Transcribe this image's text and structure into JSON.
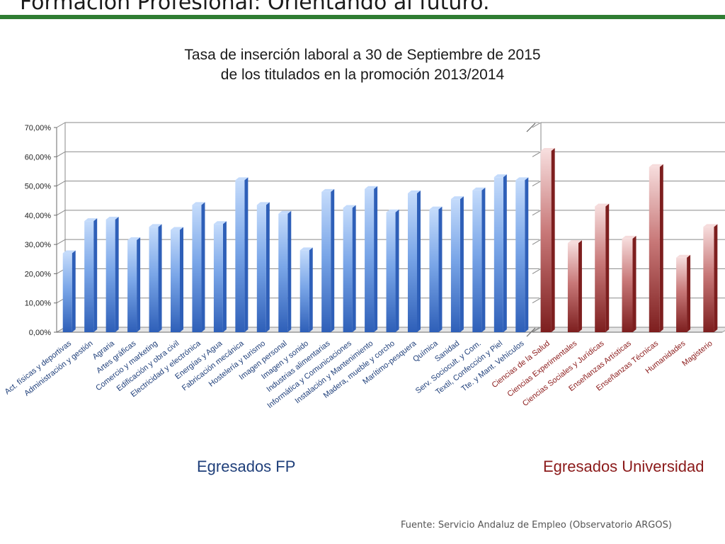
{
  "slide": {
    "title": "Formación Profesional: Orientando al futuro.",
    "accent_color": "#2f7d32"
  },
  "footer": {
    "source": "Fuente: Servicio Andaluz de Empleo (Observatorio ARGOS)"
  },
  "chart_data": {
    "type": "bar",
    "title_lines": [
      "Tasa de inserción laboral a 30 de Septiembre de 2015",
      "de los titulados en la promoción 2013/2014"
    ],
    "y_ticks": [
      "0,00%",
      "10,00%",
      "20,00%",
      "30,00%",
      "40,00%",
      "50,00%",
      "60,00%",
      "70,00%"
    ],
    "ylim": [
      0,
      70
    ],
    "y_unit": "%",
    "grid": true,
    "groups": [
      {
        "name": "Egresados FP",
        "color": "#5b8fd9",
        "label_color": "#1f3f7a",
        "categories": [
          "Act. físicas y deportivas",
          "Administración y gestión",
          "Agraria",
          "Artes gráficas",
          "Comercio y marketing",
          "Edificación y obra civil",
          "Electricidad y electrónica",
          "Energías y Agua",
          "Fabricación mecánica",
          "Hostelería y turismo",
          "Imagen personal",
          "Imagen y sonido",
          "Industrias alimentarias",
          "Informática y Comunicaciones",
          "Instalación y Mantenimiento",
          "Madera, mueble y corcho",
          "Marítimo-pesquera",
          "Química",
          "Sanidad",
          "Serv. Sociocult. y Com.",
          "Textil, Confección y Piel",
          "Tte. y Mant. Vehículos"
        ],
        "values": [
          27,
          38,
          38.5,
          31.5,
          36,
          35,
          43.5,
          37,
          52,
          43.5,
          40.5,
          28,
          48,
          42.5,
          49,
          41,
          47.5,
          42,
          45.5,
          48.5,
          53,
          52
        ]
      },
      {
        "name": "Egresados Universidad",
        "color": "#b85a5a",
        "label_color": "#8b1a1a",
        "categories": [
          "Ciencias de la Salud",
          "Ciencias Experimentales",
          "Ciencias Sociales y Jurídicas",
          "Enseñanzas Artísticas",
          "Enseñanzas Técnicas",
          "Humanidades",
          "Magisterio"
        ],
        "values": [
          62,
          30.5,
          43,
          32,
          56.5,
          25.5,
          36
        ]
      }
    ]
  }
}
